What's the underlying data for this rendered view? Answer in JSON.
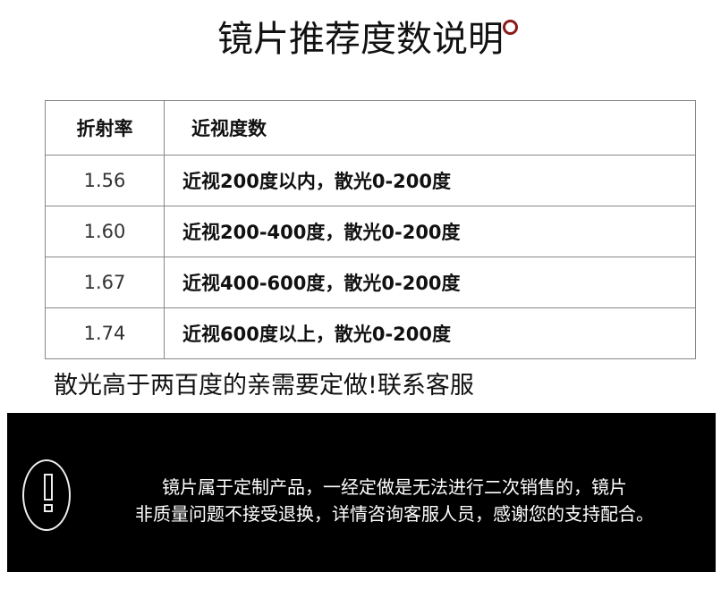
{
  "title": "镜片推荐度数说明",
  "table": {
    "headers": [
      "折射率",
      "近视度数"
    ],
    "rows": [
      {
        "index": "1.56",
        "desc": "近视200度以内，散光0-200度"
      },
      {
        "index": "1.60",
        "desc": "近视200-400度，散光0-200度"
      },
      {
        "index": "1.67",
        "desc": "近视400-600度，散光0-200度"
      },
      {
        "index": "1.74",
        "desc": "近视600度以上，散光0-200度"
      }
    ]
  },
  "note": "散光高于两百度的亲需要定做!联系客服",
  "notice": {
    "icon": "exclamation-icon",
    "line1": "镜片属于定制产品，一经定做是无法进行二次销售的，镜片",
    "line2": "非质量问题不接受退换，详情咨询客服人员，感谢您的支持配合。"
  },
  "colors": {
    "accent_dot": "#8b1a1a",
    "notice_bg": "#000000"
  }
}
